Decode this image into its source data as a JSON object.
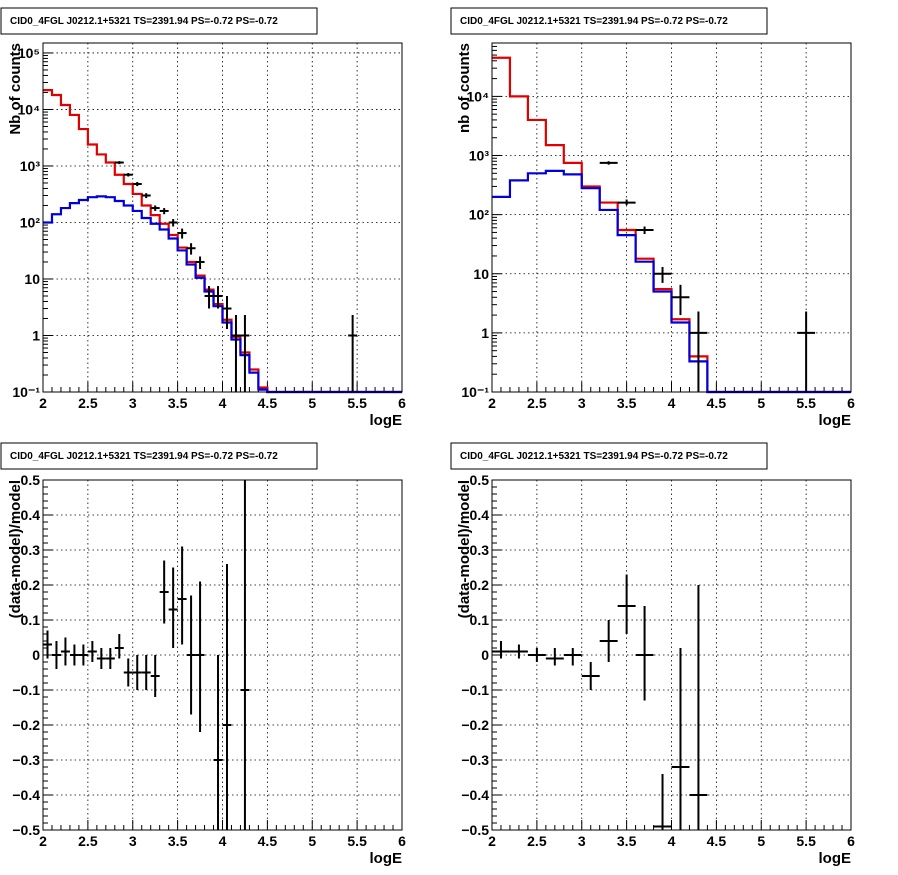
{
  "chart_data": [
    {
      "type": "line",
      "title": "CID0_4FGL J0212.1+5321 TS=2391.94 PS=-0.72 PS=-0.72",
      "xlabel": "logE",
      "ylabel": "Nb of counts",
      "xlim": [
        2,
        6
      ],
      "ylim": [
        0.1,
        150000
      ],
      "yscale": "log",
      "grid": true,
      "colors": {
        "model_total": "#e00000",
        "model_component": "#0000dd",
        "data": "#000000"
      },
      "xticks": [
        2,
        2.5,
        3,
        3.5,
        4,
        4.5,
        5,
        5.5,
        6
      ],
      "xtick_labels": [
        "2",
        "2.5",
        "3",
        "3.5",
        "4",
        "4.5",
        "5",
        "5.5",
        "6"
      ],
      "yticks": [
        0.1,
        1,
        10,
        100,
        1000,
        10000,
        100000
      ],
      "ytick_labels": [
        "10⁻¹",
        "1",
        "10",
        "10²",
        "10³",
        "10⁴",
        "10⁵"
      ],
      "bin_edges": [
        2.0,
        2.1,
        2.2,
        2.3,
        2.4,
        2.5,
        2.6,
        2.7,
        2.8,
        2.9,
        3.0,
        3.1,
        3.2,
        3.3,
        3.4,
        3.5,
        3.6,
        3.7,
        3.8,
        3.9,
        4.0,
        4.1,
        4.2,
        4.3,
        4.4,
        4.5,
        4.6,
        4.7,
        4.8,
        4.9,
        5.0,
        5.1,
        5.2,
        5.3,
        5.4,
        5.5,
        5.6,
        5.7,
        5.8,
        5.9,
        6.0
      ],
      "series": [
        {
          "values": [
            22000,
            18000,
            12000,
            8000,
            4500,
            2400,
            1600,
            1150,
            700,
            480,
            320,
            200,
            135,
            95,
            60,
            36,
            20,
            11.5,
            6.5,
            3.6,
            1.9,
            0.95,
            0.5,
            0.25,
            0.12,
            0.1,
            0.1,
            0.1,
            0.1,
            0.1,
            0.1,
            0.1,
            0.1,
            0.1,
            0.1,
            0.1,
            0.1,
            0.1,
            0.1,
            0.1
          ]
        },
        {
          "values": [
            100,
            140,
            180,
            220,
            250,
            280,
            290,
            280,
            240,
            200,
            160,
            120,
            95,
            75,
            52,
            32,
            18,
            10.5,
            6,
            3.3,
            1.7,
            0.85,
            0.45,
            0.22,
            0.11,
            0.1,
            0.1,
            0.1,
            0.1,
            0.1,
            0.1,
            0.1,
            0.1,
            0.1,
            0.1,
            0.1,
            0.1,
            0.1,
            0.1,
            0.1
          ]
        }
      ],
      "points": [
        {
          "x": 2.85,
          "y": 1150,
          "ylo": 1080,
          "yhi": 1220,
          "xerr": 0.05
        },
        {
          "x": 2.95,
          "y": 700,
          "ylo": 650,
          "yhi": 750,
          "xerr": 0.05
        },
        {
          "x": 3.05,
          "y": 480,
          "ylo": 440,
          "yhi": 520,
          "xerr": 0.05
        },
        {
          "x": 3.15,
          "y": 300,
          "ylo": 270,
          "yhi": 330,
          "xerr": 0.05
        },
        {
          "x": 3.25,
          "y": 180,
          "ylo": 160,
          "yhi": 200,
          "xerr": 0.05
        },
        {
          "x": 3.35,
          "y": 160,
          "ylo": 140,
          "yhi": 180,
          "xerr": 0.05
        },
        {
          "x": 3.45,
          "y": 100,
          "ylo": 85,
          "yhi": 115,
          "xerr": 0.05
        },
        {
          "x": 3.55,
          "y": 65,
          "ylo": 52,
          "yhi": 78,
          "xerr": 0.05
        },
        {
          "x": 3.65,
          "y": 35,
          "ylo": 27,
          "yhi": 43,
          "xerr": 0.05
        },
        {
          "x": 3.75,
          "y": 20,
          "ylo": 15,
          "yhi": 25,
          "xerr": 0.05
        },
        {
          "x": 3.85,
          "y": 5,
          "ylo": 3,
          "yhi": 7.5,
          "xerr": 0.05
        },
        {
          "x": 3.95,
          "y": 5,
          "ylo": 3,
          "yhi": 7.5,
          "xerr": 0.05
        },
        {
          "x": 4.05,
          "y": 3,
          "ylo": 1.3,
          "yhi": 5,
          "xerr": 0.05
        },
        {
          "x": 4.15,
          "y": 1,
          "ylo": 0.1,
          "yhi": 2.3,
          "xerr": 0.05
        },
        {
          "x": 4.25,
          "y": 1,
          "ylo": 0.1,
          "yhi": 2.3,
          "xerr": 0.05
        },
        {
          "x": 5.45,
          "y": 1,
          "ylo": 0.1,
          "yhi": 2.3,
          "xerr": 0.05
        }
      ]
    },
    {
      "type": "line",
      "title": "CID0_4FGL J0212.1+5321 TS=2391.94 PS=-0.72 PS=-0.72",
      "xlabel": "logE",
      "ylabel": "nb of counts",
      "xlim": [
        2,
        6
      ],
      "ylim": [
        0.1,
        80000
      ],
      "yscale": "log",
      "grid": true,
      "colors": {
        "model_total": "#e00000",
        "model_component": "#0000dd",
        "data": "#000000"
      },
      "xticks": [
        2,
        2.5,
        3,
        3.5,
        4,
        4.5,
        5,
        5.5,
        6
      ],
      "xtick_labels": [
        "2",
        "2.5",
        "3",
        "3.5",
        "4",
        "4.5",
        "5",
        "5.5",
        "6"
      ],
      "yticks": [
        0.1,
        1,
        10,
        100,
        1000,
        10000
      ],
      "ytick_labels": [
        "10⁻¹",
        "1",
        "10",
        "10²",
        "10³",
        "10⁴"
      ],
      "bin_edges": [
        2.0,
        2.2,
        2.4,
        2.6,
        2.8,
        3.0,
        3.2,
        3.4,
        3.6,
        3.8,
        4.0,
        4.2,
        4.4,
        4.6,
        4.8,
        5.0,
        5.2,
        5.4,
        5.6,
        5.8,
        6.0
      ],
      "series": [
        {
          "values": [
            45000,
            10000,
            4000,
            1500,
            750,
            300,
            160,
            55,
            18,
            5.5,
            1.7,
            0.4,
            0.1,
            0.1,
            0.1,
            0.1,
            0.1,
            0.1,
            0.1,
            0.1
          ]
        },
        {
          "values": [
            200,
            380,
            500,
            550,
            480,
            280,
            120,
            45,
            16,
            5,
            1.5,
            0.33,
            0.1,
            0.1,
            0.1,
            0.1,
            0.1,
            0.1,
            0.1,
            0.1
          ]
        }
      ],
      "points": [
        {
          "x": 3.3,
          "y": 750,
          "ylo": 700,
          "yhi": 800,
          "xerr": 0.1
        },
        {
          "x": 3.5,
          "y": 160,
          "ylo": 145,
          "yhi": 180,
          "xerr": 0.1
        },
        {
          "x": 3.7,
          "y": 55,
          "ylo": 47,
          "yhi": 63,
          "xerr": 0.1
        },
        {
          "x": 3.9,
          "y": 10,
          "ylo": 7,
          "yhi": 13,
          "xerr": 0.1
        },
        {
          "x": 4.1,
          "y": 4,
          "ylo": 2,
          "yhi": 6.5,
          "xerr": 0.1
        },
        {
          "x": 4.3,
          "y": 1,
          "ylo": 0.1,
          "yhi": 2.3,
          "xerr": 0.1
        },
        {
          "x": 5.5,
          "y": 1,
          "ylo": 0.1,
          "yhi": 2.3,
          "xerr": 0.1
        }
      ]
    },
    {
      "type": "scatter",
      "title": "CID0_4FGL J0212.1+5321 TS=2391.94 PS=-0.72 PS=-0.72",
      "xlabel": "logE",
      "ylabel": "(data-model)/model",
      "xlim": [
        2,
        6
      ],
      "ylim": [
        -0.5,
        0.5
      ],
      "yscale": "linear",
      "grid": true,
      "colors": {
        "data": "#000000"
      },
      "xticks": [
        2,
        2.5,
        3,
        3.5,
        4,
        4.5,
        5,
        5.5,
        6
      ],
      "xtick_labels": [
        "2",
        "2.5",
        "3",
        "3.5",
        "4",
        "4.5",
        "5",
        "5.5",
        "6"
      ],
      "yticks": [
        -0.5,
        -0.4,
        -0.3,
        -0.2,
        -0.1,
        0,
        0.1,
        0.2,
        0.3,
        0.4,
        0.5
      ],
      "ytick_labels": [
        "−0.5",
        "−0.4",
        "−0.3",
        "−0.2",
        "−0.1",
        "0",
        "0.1",
        "0.2",
        "0.3",
        "0.4",
        "0.5"
      ],
      "points": [
        {
          "x": 2.05,
          "y": 0.03,
          "ylo": -0.01,
          "yhi": 0.07,
          "xerr": 0.05
        },
        {
          "x": 2.15,
          "y": 0.0,
          "ylo": -0.04,
          "yhi": 0.04,
          "xerr": 0.05
        },
        {
          "x": 2.25,
          "y": 0.01,
          "ylo": -0.03,
          "yhi": 0.05,
          "xerr": 0.05
        },
        {
          "x": 2.35,
          "y": 0.0,
          "ylo": -0.03,
          "yhi": 0.03,
          "xerr": 0.05
        },
        {
          "x": 2.45,
          "y": 0.0,
          "ylo": -0.03,
          "yhi": 0.03,
          "xerr": 0.05
        },
        {
          "x": 2.55,
          "y": 0.01,
          "ylo": -0.02,
          "yhi": 0.04,
          "xerr": 0.05
        },
        {
          "x": 2.65,
          "y": -0.01,
          "ylo": -0.04,
          "yhi": 0.02,
          "xerr": 0.05
        },
        {
          "x": 2.75,
          "y": -0.01,
          "ylo": -0.04,
          "yhi": 0.02,
          "xerr": 0.05
        },
        {
          "x": 2.85,
          "y": 0.02,
          "ylo": -0.01,
          "yhi": 0.06,
          "xerr": 0.05
        },
        {
          "x": 2.95,
          "y": -0.05,
          "ylo": -0.09,
          "yhi": -0.01,
          "xerr": 0.05
        },
        {
          "x": 3.05,
          "y": -0.05,
          "ylo": -0.1,
          "yhi": 0.0,
          "xerr": 0.05
        },
        {
          "x": 3.15,
          "y": -0.05,
          "ylo": -0.1,
          "yhi": 0.0,
          "xerr": 0.05
        },
        {
          "x": 3.25,
          "y": -0.06,
          "ylo": -0.12,
          "yhi": 0.0,
          "xerr": 0.05
        },
        {
          "x": 3.35,
          "y": 0.18,
          "ylo": 0.09,
          "yhi": 0.27,
          "xerr": 0.05
        },
        {
          "x": 3.45,
          "y": 0.13,
          "ylo": 0.02,
          "yhi": 0.25,
          "xerr": 0.05
        },
        {
          "x": 3.55,
          "y": 0.16,
          "ylo": 0.03,
          "yhi": 0.31,
          "xerr": 0.05
        },
        {
          "x": 3.65,
          "y": 0.0,
          "ylo": -0.17,
          "yhi": 0.17,
          "xerr": 0.05
        },
        {
          "x": 3.75,
          "y": 0.0,
          "ylo": -0.22,
          "yhi": 0.21,
          "xerr": 0.05
        },
        {
          "x": 3.95,
          "y": -0.3,
          "ylo": -0.5,
          "yhi": 0.0,
          "xerr": 0.05
        },
        {
          "x": 4.05,
          "y": -0.2,
          "ylo": -0.5,
          "yhi": 0.26,
          "xerr": 0.05
        },
        {
          "x": 4.25,
          "y": -0.1,
          "ylo": -0.5,
          "yhi": 0.5,
          "xerr": 0.05
        }
      ]
    },
    {
      "type": "scatter",
      "title": "CID0_4FGL J0212.1+5321 TS=2391.94 PS=-0.72 PS=-0.72",
      "xlabel": "logE",
      "ylabel": "(data-model)/model",
      "xlim": [
        2,
        6
      ],
      "ylim": [
        -0.5,
        0.5
      ],
      "yscale": "linear",
      "grid": true,
      "colors": {
        "data": "#000000"
      },
      "xticks": [
        2,
        2.5,
        3,
        3.5,
        4,
        4.5,
        5,
        5.5,
        6
      ],
      "xtick_labels": [
        "2",
        "2.5",
        "3",
        "3.5",
        "4",
        "4.5",
        "5",
        "5.5",
        "6"
      ],
      "yticks": [
        -0.5,
        -0.4,
        -0.3,
        -0.2,
        -0.1,
        0,
        0.1,
        0.2,
        0.3,
        0.4,
        0.5
      ],
      "ytick_labels": [
        "−0.5",
        "−0.4",
        "−0.3",
        "−0.2",
        "−0.1",
        "0",
        "0.1",
        "0.2",
        "0.3",
        "0.4",
        "0.5"
      ],
      "points": [
        {
          "x": 2.1,
          "y": 0.01,
          "ylo": -0.01,
          "yhi": 0.04,
          "xerr": 0.1
        },
        {
          "x": 2.3,
          "y": 0.01,
          "ylo": -0.01,
          "yhi": 0.03,
          "xerr": 0.1
        },
        {
          "x": 2.5,
          "y": 0.0,
          "ylo": -0.02,
          "yhi": 0.02,
          "xerr": 0.1
        },
        {
          "x": 2.7,
          "y": -0.01,
          "ylo": -0.03,
          "yhi": 0.02,
          "xerr": 0.1
        },
        {
          "x": 2.9,
          "y": 0.0,
          "ylo": -0.03,
          "yhi": 0.02,
          "xerr": 0.1
        },
        {
          "x": 3.1,
          "y": -0.06,
          "ylo": -0.1,
          "yhi": -0.02,
          "xerr": 0.1
        },
        {
          "x": 3.3,
          "y": 0.04,
          "ylo": -0.02,
          "yhi": 0.1,
          "xerr": 0.1
        },
        {
          "x": 3.5,
          "y": 0.14,
          "ylo": 0.06,
          "yhi": 0.23,
          "xerr": 0.1
        },
        {
          "x": 3.7,
          "y": 0.0,
          "ylo": -0.13,
          "yhi": 0.14,
          "xerr": 0.1
        },
        {
          "x": 3.9,
          "y": -0.49,
          "ylo": -0.5,
          "yhi": -0.34,
          "xerr": 0.1
        },
        {
          "x": 4.1,
          "y": -0.32,
          "ylo": -0.5,
          "yhi": 0.02,
          "xerr": 0.1
        },
        {
          "x": 4.3,
          "y": -0.4,
          "ylo": -0.5,
          "yhi": 0.2,
          "xerr": 0.1
        }
      ]
    }
  ]
}
